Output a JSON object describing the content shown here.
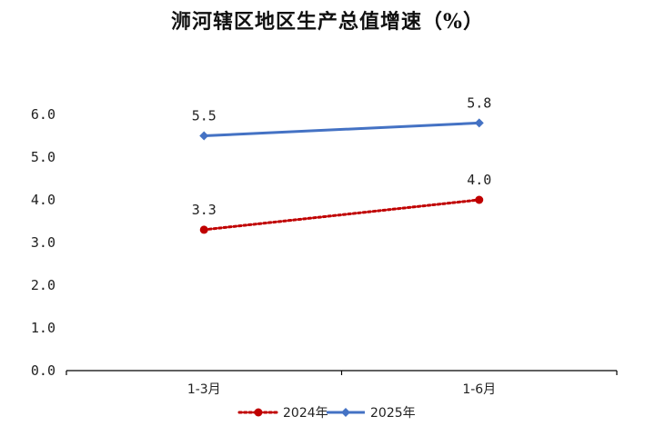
{
  "chart_data": {
    "type": "line",
    "title": "浉河辖区地区生产总值增速（%）",
    "xlabel": "",
    "ylabel": "",
    "categories": [
      "1-3月",
      "1-6月"
    ],
    "yticks": [
      "0.0",
      "1.0",
      "2.0",
      "3.0",
      "4.0",
      "5.0",
      "6.0"
    ],
    "ylim": [
      0,
      6
    ],
    "grid": false,
    "legend_position": "bottom",
    "series": [
      {
        "name": "2024年",
        "values": [
          3.3,
          4.0
        ],
        "labels": [
          "3.3",
          "4.0"
        ],
        "color": "#c00000",
        "line_style": "dotted",
        "marker": "circle"
      },
      {
        "name": "2025年",
        "values": [
          5.5,
          5.8
        ],
        "labels": [
          "5.5",
          "5.8"
        ],
        "color": "#4472c4",
        "line_style": "solid",
        "marker": "diamond"
      }
    ]
  }
}
